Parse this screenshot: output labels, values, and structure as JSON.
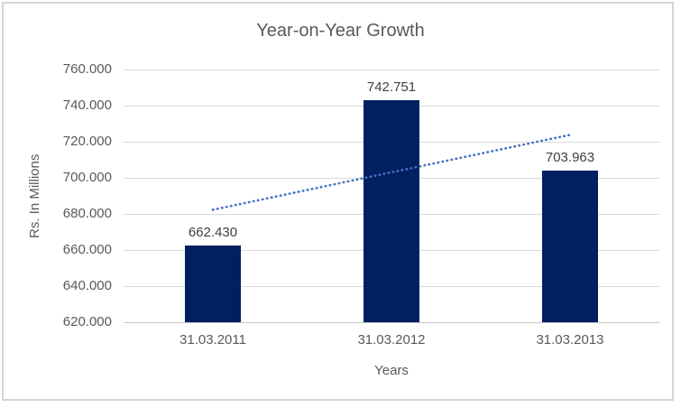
{
  "chart_data": {
    "type": "bar",
    "title": "Year-on-Year Growth",
    "xlabel": "Years",
    "ylabel": "Rs. In Millions",
    "categories": [
      "31.03.2011",
      "31.03.2012",
      "31.03.2013"
    ],
    "values": [
      662.43,
      742.751,
      703.963
    ],
    "data_labels": [
      "662.430",
      "742.751",
      "703.963"
    ],
    "ylim": [
      620,
      760
    ],
    "ytick_step": 20,
    "ytick_labels": [
      "760.000",
      "740.000",
      "720.000",
      "700.000",
      "680.000",
      "660.000",
      "640.000",
      "620.000"
    ],
    "grid": true,
    "legend": "none",
    "bar_color": "#002060",
    "trendline": {
      "type": "linear",
      "style": "dotted",
      "color": "#4472C4",
      "y_start": 682.3,
      "y_end": 723.8
    },
    "colors": {
      "title_text": "#595959",
      "axis_text": "#595959",
      "data_label_text": "#404040",
      "gridline": "#D9D9D9",
      "axis_line": "#C6C6C6",
      "frame_border": "#D6D6D6",
      "background": "#FFFFFF"
    }
  }
}
